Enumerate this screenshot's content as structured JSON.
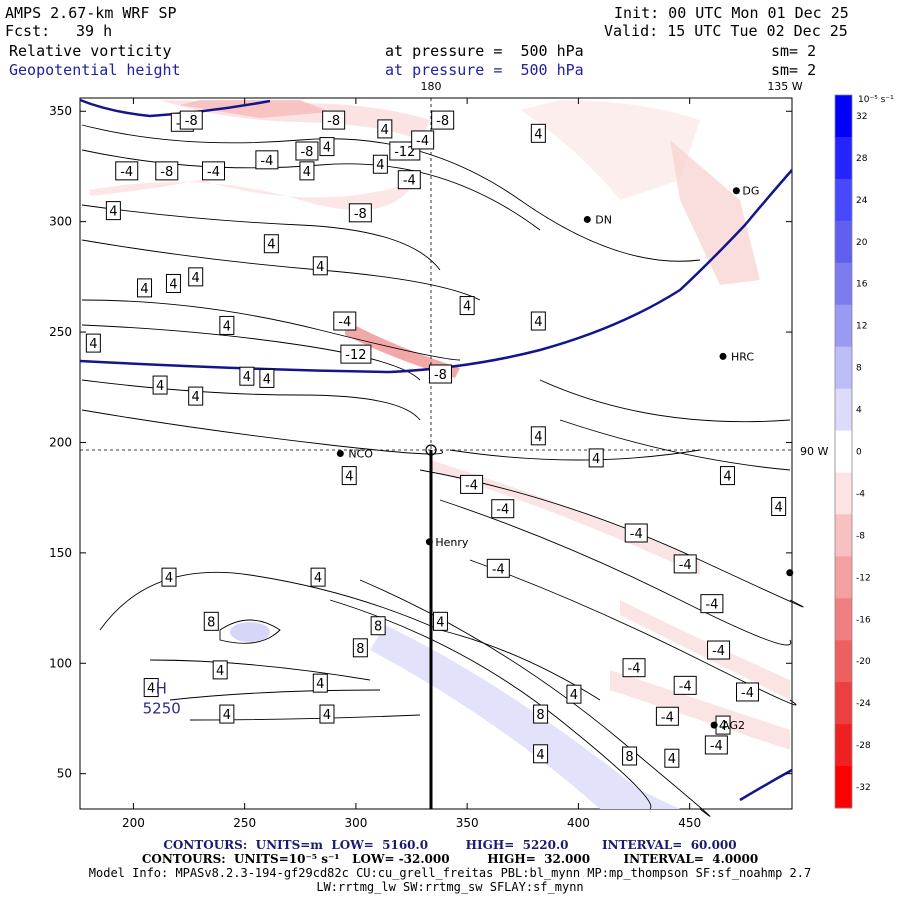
{
  "header": {
    "model": "AMPS 2.67-km WRF SP",
    "fcst_label": "Fcst:",
    "fcst_value": "39 h",
    "init": "Init: 00 UTC Mon 01 Dec 25",
    "valid": "Valid: 15 UTC Tue 02 Dec 25",
    "field1": "Relative vorticity",
    "field1_level": "at pressure =  500 hPa",
    "field1_sm": "sm= 2",
    "field2": "Geopotential height",
    "field2_level": "at pressure =  500 hPa",
    "field2_sm": "sm= 2",
    "lon_label_top": "180",
    "lon_label_right_top": "135 W",
    "lat_label_right": "90 W"
  },
  "colorbar": {
    "unit_label": "10⁻⁵ s⁻¹",
    "ticks": [
      "32",
      "28",
      "24",
      "20",
      "16",
      "12",
      "8",
      "4",
      "0",
      "-4",
      "-8",
      "-12",
      "-16",
      "-20",
      "-24",
      "-28",
      "-32"
    ],
    "colors": [
      "#0000ff",
      "#2424ff",
      "#4848ff",
      "#6060f0",
      "#7c7cf0",
      "#9a9af2",
      "#bcbcf6",
      "#dcdcfa",
      "#ffffff",
      "#fde4e4",
      "#f8c0c0",
      "#f4a0a0",
      "#f08080",
      "#ee6060",
      "#ec4040",
      "#f02020",
      "#ff0000"
    ]
  },
  "stations": [
    {
      "name": "NCO"
    },
    {
      "name": "Henry"
    },
    {
      "name": "HRC"
    },
    {
      "name": "AG2"
    },
    {
      "name": "DN"
    },
    {
      "name": "DG"
    }
  ],
  "high_marker": {
    "letter": "H",
    "value": "5250"
  },
  "footer": {
    "contours1": "CONTOURS:  UNITS=m  LOW=  5160.0         HIGH=  5220.0        INTERVAL=  60.000",
    "contours2": "CONTOURS:  UNITS=10⁻⁵ s⁻¹   LOW= -32.000         HIGH=  32.000        INTERVAL=  4.0000",
    "model_info": "Model Info: MPASv8.2.3-194-gf29cd82c CU:cu_grell_freitas PBL:bl_mynn MP:mp_thompson SF:sf_noahmp 2.7",
    "model_info2": "LW:rrtmg_lw SW:rrtmg_sw SFLAY:sf_mynn"
  },
  "chart_data": {
    "type": "contour-map",
    "title": "Relative vorticity and Geopotential height at 500 hPa",
    "x_ticks": [
      200,
      250,
      300,
      350,
      400,
      450
    ],
    "y_ticks": [
      50,
      100,
      150,
      200,
      250,
      300,
      350
    ],
    "xlim": [
      176,
      496
    ],
    "ylim": [
      34,
      356
    ],
    "geopotential_height_contours_m": [
      5160,
      5220
    ],
    "vorticity_contour_interval": 4.0,
    "vorticity_range": [
      -32,
      32
    ],
    "contour_labels": [
      {
        "x": 197,
        "y": 323,
        "v": "-4"
      },
      {
        "x": 215,
        "y": 323,
        "v": "-8"
      },
      {
        "x": 236,
        "y": 323,
        "v": "-4"
      },
      {
        "x": 260,
        "y": 328,
        "v": "-4"
      },
      {
        "x": 222,
        "y": 345,
        "v": "-4"
      },
      {
        "x": 226,
        "y": 346,
        "v": "-8"
      },
      {
        "x": 278,
        "y": 332,
        "v": "-8"
      },
      {
        "x": 287,
        "y": 334,
        "v": "4"
      },
      {
        "x": 278,
        "y": 323,
        "v": "4"
      },
      {
        "x": 290,
        "y": 346,
        "v": "-8"
      },
      {
        "x": 311,
        "y": 326,
        "v": "4"
      },
      {
        "x": 322,
        "y": 332,
        "v": "-12"
      },
      {
        "x": 313,
        "y": 342,
        "v": "4"
      },
      {
        "x": 330,
        "y": 337,
        "v": "-4"
      },
      {
        "x": 339,
        "y": 346,
        "v": "-8"
      },
      {
        "x": 324,
        "y": 319,
        "v": "-4"
      },
      {
        "x": 302,
        "y": 304,
        "v": "-8"
      },
      {
        "x": 382,
        "y": 340,
        "v": "4"
      },
      {
        "x": 191,
        "y": 305,
        "v": "4"
      },
      {
        "x": 262,
        "y": 290,
        "v": "4"
      },
      {
        "x": 284,
        "y": 280,
        "v": "4"
      },
      {
        "x": 205,
        "y": 270,
        "v": "4"
      },
      {
        "x": 218,
        "y": 272,
        "v": "4"
      },
      {
        "x": 228,
        "y": 275,
        "v": "4"
      },
      {
        "x": 350,
        "y": 262,
        "v": "4"
      },
      {
        "x": 242,
        "y": 253,
        "v": "4"
      },
      {
        "x": 182,
        "y": 245,
        "v": "4"
      },
      {
        "x": 295,
        "y": 255,
        "v": "-4"
      },
      {
        "x": 382,
        "y": 255,
        "v": "4"
      },
      {
        "x": 300,
        "y": 240,
        "v": "-12"
      },
      {
        "x": 338,
        "y": 231,
        "v": "-8"
      },
      {
        "x": 212,
        "y": 226,
        "v": "4"
      },
      {
        "x": 251,
        "y": 230,
        "v": "4"
      },
      {
        "x": 260,
        "y": 229,
        "v": "4"
      },
      {
        "x": 228,
        "y": 221,
        "v": "4"
      },
      {
        "x": 382,
        "y": 203,
        "v": "4"
      },
      {
        "x": 297,
        "y": 185,
        "v": "4"
      },
      {
        "x": 408,
        "y": 193,
        "v": "4"
      },
      {
        "x": 467,
        "y": 185,
        "v": "4"
      },
      {
        "x": 352,
        "y": 181,
        "v": "-4"
      },
      {
        "x": 366,
        "y": 170,
        "v": "-4"
      },
      {
        "x": 490,
        "y": 171,
        "v": "4"
      },
      {
        "x": 426,
        "y": 159,
        "v": "-4"
      },
      {
        "x": 448,
        "y": 145,
        "v": "-4"
      },
      {
        "x": 364,
        "y": 143,
        "v": "-4"
      },
      {
        "x": 216,
        "y": 139,
        "v": "4"
      },
      {
        "x": 283,
        "y": 139,
        "v": "4"
      },
      {
        "x": 460,
        "y": 127,
        "v": "-4"
      },
      {
        "x": 235,
        "y": 119,
        "v": "8"
      },
      {
        "x": 310,
        "y": 117,
        "v": "8"
      },
      {
        "x": 338,
        "y": 119,
        "v": "4"
      },
      {
        "x": 302,
        "y": 107,
        "v": "8"
      },
      {
        "x": 463,
        "y": 106,
        "v": "-4"
      },
      {
        "x": 239,
        "y": 97,
        "v": "4"
      },
      {
        "x": 284,
        "y": 91,
        "v": "4"
      },
      {
        "x": 208,
        "y": 89,
        "v": "4"
      },
      {
        "x": 425,
        "y": 98,
        "v": "-4"
      },
      {
        "x": 448,
        "y": 90,
        "v": "-4"
      },
      {
        "x": 476,
        "y": 87,
        "v": "-4"
      },
      {
        "x": 398,
        "y": 86,
        "v": "4"
      },
      {
        "x": 242,
        "y": 77,
        "v": "4"
      },
      {
        "x": 287,
        "y": 77,
        "v": "4"
      },
      {
        "x": 383,
        "y": 77,
        "v": "8"
      },
      {
        "x": 440,
        "y": 76,
        "v": "-4"
      },
      {
        "x": 462,
        "y": 63,
        "v": "-4"
      },
      {
        "x": 383,
        "y": 59,
        "v": "4"
      },
      {
        "x": 442,
        "y": 57,
        "v": "4"
      },
      {
        "x": 423,
        "y": 58,
        "v": "8"
      },
      {
        "x": 465,
        "y": 72,
        "v": "4"
      }
    ]
  }
}
